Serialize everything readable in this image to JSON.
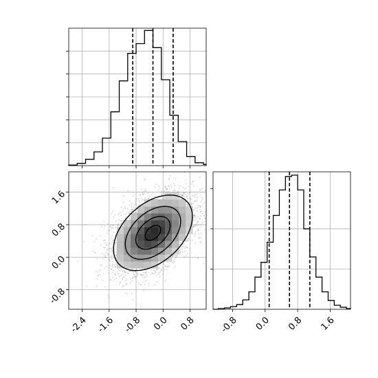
{
  "chart_data": {
    "type": "corner",
    "grid": true,
    "colors": {
      "line": "#000000",
      "grid": "#b0b0b0",
      "scatter": "#808080",
      "background": "#ffffff"
    },
    "panels": [
      {
        "id": "hist-x",
        "type": "histogram",
        "xlim": [
          -2.8,
          1.28
        ],
        "bins": [
          -2.8,
          -2.55,
          -2.3,
          -2.05,
          -1.8,
          -1.55,
          -1.3,
          -1.05,
          -0.8,
          -0.55,
          -0.3,
          -0.05,
          0.2,
          0.45,
          0.7,
          0.95,
          1.2,
          1.28
        ],
        "counts": [
          1,
          4,
          11,
          24,
          48,
          94,
          148,
          196,
          213,
          236,
          206,
          150,
          88,
          42,
          16,
          5,
          2
        ],
        "ymax": 240,
        "quantile_lines": [
          -0.9,
          -0.3,
          0.3
        ],
        "tick_labels_y": []
      },
      {
        "id": "scatter-xy",
        "type": "2d-density",
        "xlim": [
          -2.8,
          1.28
        ],
        "ylim": [
          -1.28,
          2.1
        ],
        "x_ticks": [
          "-2.4",
          "-1.6",
          "-0.8",
          "0.0",
          "0.8"
        ],
        "x_tick_values": [
          -2.4,
          -1.6,
          -0.8,
          0.0,
          0.8
        ],
        "y_ticks": [
          "-0.8",
          "0.0",
          "0.8",
          "1.6"
        ],
        "y_tick_values": [
          -0.8,
          0.0,
          0.8,
          1.6
        ],
        "center": [
          -0.3,
          0.6
        ],
        "covariance": [
          [
            0.35,
            0.12
          ],
          [
            0.12,
            0.22
          ]
        ],
        "contour_levels": [
          0.39,
          0.86,
          1.39,
          1.98
        ]
      },
      {
        "id": "hist-y",
        "type": "histogram",
        "xlim": [
          -1.28,
          2.1
        ],
        "bins": [
          -1.28,
          -1.15,
          -1.0,
          -0.85,
          -0.7,
          -0.55,
          -0.4,
          -0.25,
          -0.1,
          0.05,
          0.2,
          0.35,
          0.5,
          0.65,
          0.8,
          0.95,
          1.1,
          1.25,
          1.4,
          1.55,
          1.7,
          1.85,
          2.0,
          2.1
        ],
        "counts": [
          0,
          1,
          2,
          4,
          7,
          14,
          26,
          48,
          70,
          100,
          140,
          178,
          198,
          200,
          178,
          120,
          78,
          48,
          26,
          13,
          6,
          3,
          1
        ],
        "ymax": 205,
        "quantile_lines": [
          0.1,
          0.6,
          1.1
        ],
        "x_ticks": [
          "-0.8",
          "0.0",
          "0.8",
          "1.6"
        ],
        "x_tick_values": [
          -0.8,
          0.0,
          0.8,
          1.6
        ]
      }
    ]
  }
}
